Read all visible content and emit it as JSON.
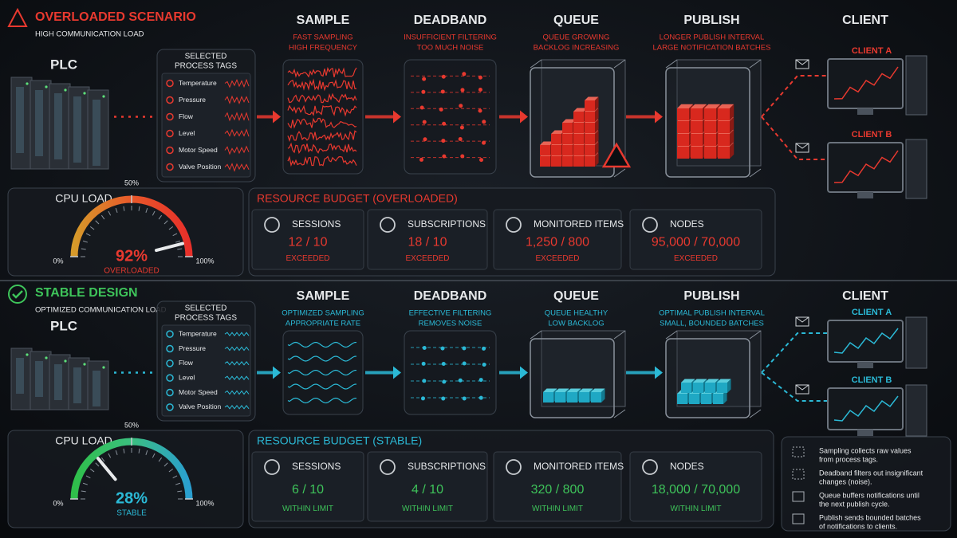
{
  "scenarios": [
    {
      "title": "OVERLOADED SCENARIO",
      "subtitle": "HIGH COMMUNICATION LOAD",
      "color": "#e8392f",
      "flow_color": "#e8392f",
      "plc": "PLC",
      "tags_title": [
        "SELECTED",
        "PROCESS TAGS"
      ],
      "tags": [
        "Temperature",
        "Pressure",
        "Flow",
        "Level",
        "Motor Speed",
        "Valve Position"
      ],
      "stages": [
        {
          "name": "SAMPLE",
          "caption": [
            "FAST SAMPLING",
            "HIGH FREQUENCY"
          ]
        },
        {
          "name": "DEADBAND",
          "caption": [
            "INSUFFICIENT FILTERING",
            "TOO MUCH NOISE"
          ]
        },
        {
          "name": "QUEUE",
          "caption": [
            "QUEUE GROWING",
            "BACKLOG INCREASING"
          ]
        },
        {
          "name": "PUBLISH",
          "caption": [
            "LONGER PUBLISH INTERVAL",
            "LARGE NOTIFICATION BATCHES"
          ]
        }
      ],
      "client": {
        "name": "CLIENT",
        "clients": [
          "CLIENT A",
          "CLIENT B"
        ]
      },
      "cpu": {
        "label": "CPU LOAD",
        "ticks": [
          {
            "value": 0,
            "label": "0%"
          },
          {
            "value": 50,
            "label": "50%"
          },
          {
            "value": 100,
            "label": "100%"
          }
        ],
        "value": 92,
        "value_label": "92%",
        "status": "OVERLOADED"
      },
      "budget": {
        "title": "RESOURCE BUDGET (OVERLOADED)",
        "items": [
          {
            "name": "SESSIONS",
            "value": "12 / 10",
            "status": "EXCEEDED"
          },
          {
            "name": "SUBSCRIPTIONS",
            "value": "18 / 10",
            "status": "EXCEEDED"
          },
          {
            "name": "MONITORED ITEMS",
            "value": "1,250 / 800",
            "status": "EXCEEDED"
          },
          {
            "name": "NODES",
            "value": "95,000 / 70,000",
            "status": "EXCEEDED"
          }
        ]
      }
    },
    {
      "title": "STABLE DESIGN",
      "subtitle": "OPTIMIZED COMMUNICATION LOAD",
      "color": "#3ec45a",
      "flow_color": "#2bb9d6",
      "plc": "PLC",
      "tags_title": [
        "SELECTED",
        "PROCESS TAGS"
      ],
      "tags": [
        "Temperature",
        "Pressure",
        "Flow",
        "Level",
        "Motor Speed",
        "Valve Position"
      ],
      "stages": [
        {
          "name": "SAMPLE",
          "caption": [
            "OPTIMIZED SAMPLING",
            "APPROPRIATE RATE"
          ]
        },
        {
          "name": "DEADBAND",
          "caption": [
            "EFFECTIVE FILTERING",
            "REMOVES NOISE"
          ]
        },
        {
          "name": "QUEUE",
          "caption": [
            "QUEUE HEALTHY",
            "LOW BACKLOG"
          ]
        },
        {
          "name": "PUBLISH",
          "caption": [
            "OPTIMAL PUBLISH INTERVAL",
            "SMALL, BOUNDED BATCHES"
          ]
        }
      ],
      "client": {
        "name": "CLIENT",
        "clients": [
          "CLIENT A",
          "CLIENT B"
        ]
      },
      "cpu": {
        "label": "CPU LOAD",
        "ticks": [
          {
            "value": 0,
            "label": "0%"
          },
          {
            "value": 50,
            "label": "50%"
          },
          {
            "value": 100,
            "label": "100%"
          }
        ],
        "value": 28,
        "value_label": "28%",
        "status": "STABLE"
      },
      "budget": {
        "title": "RESOURCE BUDGET (STABLE)",
        "items": [
          {
            "name": "SESSIONS",
            "value": "6 / 10",
            "status": "WITHIN LIMIT"
          },
          {
            "name": "SUBSCRIPTIONS",
            "value": "4 / 10",
            "status": "WITHIN LIMIT"
          },
          {
            "name": "MONITORED ITEMS",
            "value": "320 / 800",
            "status": "WITHIN LIMIT"
          },
          {
            "name": "NODES",
            "value": "18,000 / 70,000",
            "status": "WITHIN LIMIT"
          }
        ]
      }
    }
  ],
  "legend": [
    [
      "Sampling collects raw values",
      "from process tags."
    ],
    [
      "Deadband filters out insignificant",
      "changes (noise)."
    ],
    [
      "Queue buffers notifications until",
      "the next publish cycle."
    ],
    [
      "Publish sends bounded batches",
      "of notifications to clients."
    ]
  ]
}
